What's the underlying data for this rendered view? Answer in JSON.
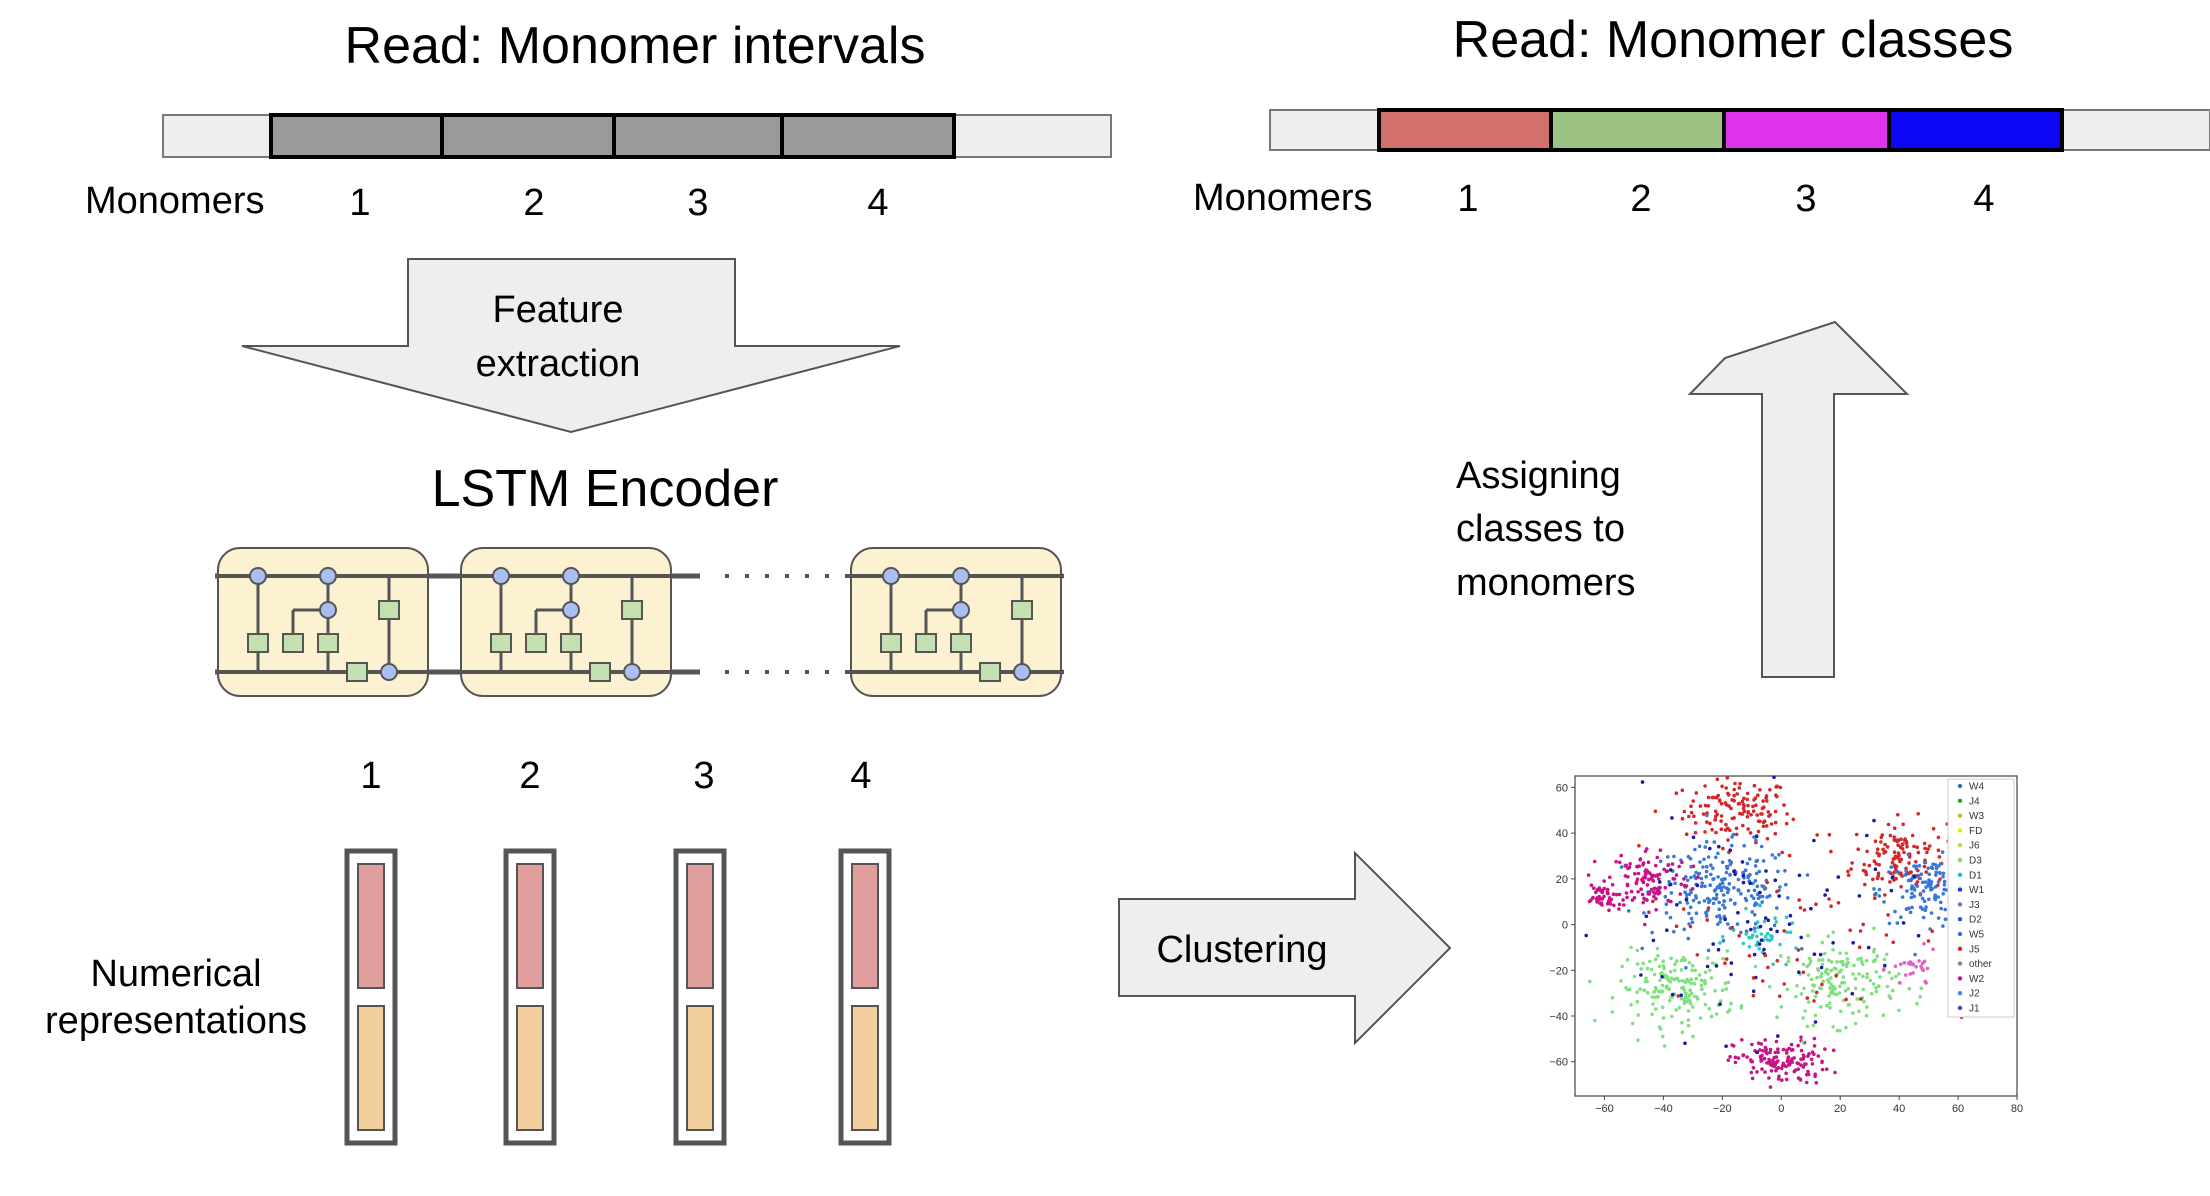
{
  "left": {
    "title": "Read: Monomer intervals",
    "monomers_label": "Monomers",
    "monomer_numbers": [
      "1",
      "2",
      "3",
      "4"
    ],
    "feature_extraction_line1": "Feature",
    "feature_extraction_line2": "extraction",
    "lstm_title": "LSTM Encoder",
    "representation_numbers": [
      "1",
      "2",
      "3",
      "4"
    ],
    "numerical_line1": "Numerical",
    "numerical_line2": "representations"
  },
  "right": {
    "title": "Read: Monomer classes",
    "monomers_label": "Monomers",
    "monomer_numbers": [
      "1",
      "2",
      "3",
      "4"
    ],
    "assign_line1": "Assigning",
    "assign_line2": "classes to",
    "assign_line3": "monomers",
    "clustering_label": "Clustering"
  },
  "colors": {
    "interval_gray": "#9a9a9a",
    "class_red": "#d4706b",
    "class_green": "#9bc384",
    "class_magenta": "#dd33ee",
    "class_blue": "#0b07f5",
    "lstm_cell_fill": "#fcf2d2",
    "vector_top": "#e09f9d",
    "vector_bottom": "#f4cf9e",
    "arrow_fill": "#eeeeee"
  },
  "chart_data": {
    "type": "scatter",
    "x_ticks": [
      "−60",
      "−40",
      "−20",
      "0",
      "20",
      "40",
      "60",
      "80"
    ],
    "y_ticks": [
      "60",
      "40",
      "20",
      "0",
      "−20",
      "−40",
      "−60"
    ],
    "xlim": [
      -70,
      80
    ],
    "ylim": [
      -75,
      65
    ],
    "legend_position": "top-right",
    "legend": [
      {
        "label": "W4",
        "color": "#1f77b4"
      },
      {
        "label": "J4",
        "color": "#2ca02c"
      },
      {
        "label": "W3",
        "color": "#bcbd22"
      },
      {
        "label": "FD",
        "color": "#e8e800"
      },
      {
        "label": "J6",
        "color": "#d6d04a"
      },
      {
        "label": "D3",
        "color": "#8fd14f"
      },
      {
        "label": "D1",
        "color": "#17becf"
      },
      {
        "label": "W1",
        "color": "#1a3fd6"
      },
      {
        "label": "J3",
        "color": "#9467bd"
      },
      {
        "label": "D2",
        "color": "#2a55e0"
      },
      {
        "label": "W5",
        "color": "#3b6fd8"
      },
      {
        "label": "J5",
        "color": "#d62728"
      },
      {
        "label": "other",
        "color": "#888888"
      },
      {
        "label": "W2",
        "color": "#c71585"
      },
      {
        "label": "J2",
        "color": "#3a8ee6"
      },
      {
        "label": "J1",
        "color": "#4a3fc0"
      }
    ],
    "clusters": [
      {
        "cx": -15,
        "cy": 50,
        "sx": 9,
        "sy": 7,
        "n": 130,
        "color": "#d62728"
      },
      {
        "cx": 40,
        "cy": 30,
        "sx": 8,
        "sy": 8,
        "n": 130,
        "color": "#d62728"
      },
      {
        "cx": -20,
        "cy": 15,
        "sx": 12,
        "sy": 10,
        "n": 220,
        "color": "#3a78d8"
      },
      {
        "cx": 50,
        "cy": 15,
        "sx": 8,
        "sy": 7,
        "n": 130,
        "color": "#3a78d8"
      },
      {
        "cx": -45,
        "cy": 20,
        "sx": 7,
        "sy": 7,
        "n": 120,
        "color": "#c71585"
      },
      {
        "cx": -62,
        "cy": 12,
        "sx": 3,
        "sy": 3,
        "n": 40,
        "color": "#c71585"
      },
      {
        "cx": 0,
        "cy": -60,
        "sx": 8,
        "sy": 5,
        "n": 140,
        "color": "#c71585"
      },
      {
        "cx": -35,
        "cy": -28,
        "sx": 10,
        "sy": 8,
        "n": 170,
        "color": "#7fe07f"
      },
      {
        "cx": 20,
        "cy": -25,
        "sx": 10,
        "sy": 9,
        "n": 160,
        "color": "#7fe07f"
      },
      {
        "cx": -5,
        "cy": -5,
        "sx": 6,
        "sy": 5,
        "n": 40,
        "color": "#2ec8c0"
      },
      {
        "cx": 45,
        "cy": -20,
        "sx": 4,
        "sy": 4,
        "n": 25,
        "color": "#e060c0"
      },
      {
        "cx": -10,
        "cy": 0,
        "sx": 25,
        "sy": 25,
        "n": 90,
        "color": "#1a1aa8"
      },
      {
        "cx": 5,
        "cy": 5,
        "sx": 30,
        "sy": 25,
        "n": 70,
        "color": "#d62728"
      }
    ]
  }
}
